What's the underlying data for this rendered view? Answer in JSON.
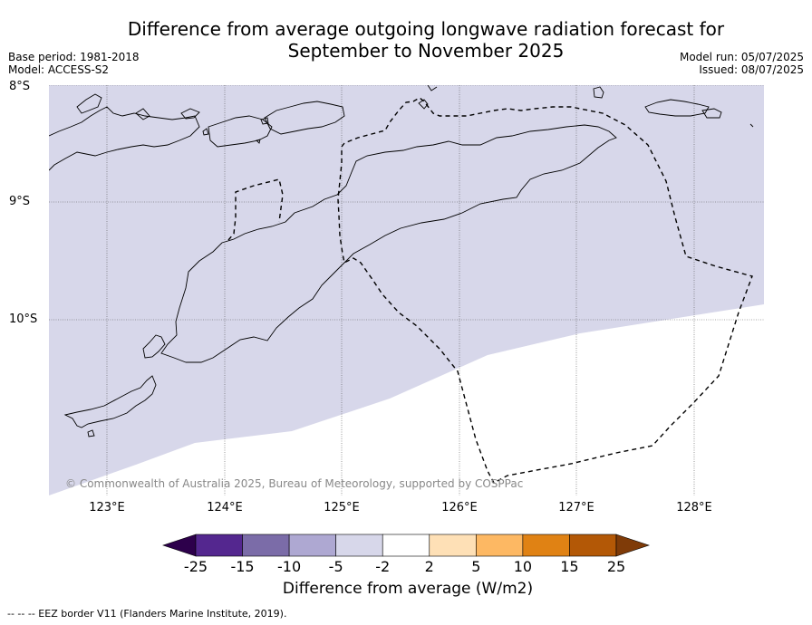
{
  "title_line1": "Difference from average outgoing longwave radiation forecast for",
  "title_line2": "September to November 2025",
  "base_period": "Base period: 1981-2018",
  "model": "Model: ACCESS-S2",
  "model_run": "Model run: 05/07/2025",
  "issued": "Issued: 08/07/2025",
  "lat_labels": [
    "8°S",
    "9°S",
    "10°S"
  ],
  "lon_labels": [
    "123°E",
    "124°E",
    "125°E",
    "126°E",
    "127°E",
    "128°E"
  ],
  "copyright": "© Commonwealth of Australia 2025, Bureau of Meteorology, supported by COSPPac",
  "colorbar": {
    "title": "Difference from average (W/m2)",
    "ticks": [
      "-25",
      "-15",
      "-10",
      "-5",
      "-2",
      "2",
      "5",
      "10",
      "15",
      "25"
    ],
    "colors": [
      "#54278f",
      "#7b6ca8",
      "#aea8d2",
      "#d7d7ea",
      "#ffffff",
      "#fee0b6",
      "#fdb863",
      "#e08214",
      "#b35806"
    ],
    "min_color": "#2d004b",
    "max_color": "#7f3b08"
  },
  "map_fill_color": "#d7d7ea",
  "footer": "--  --  -- EEZ border V11 (Flanders Marine Institute, 2019)."
}
